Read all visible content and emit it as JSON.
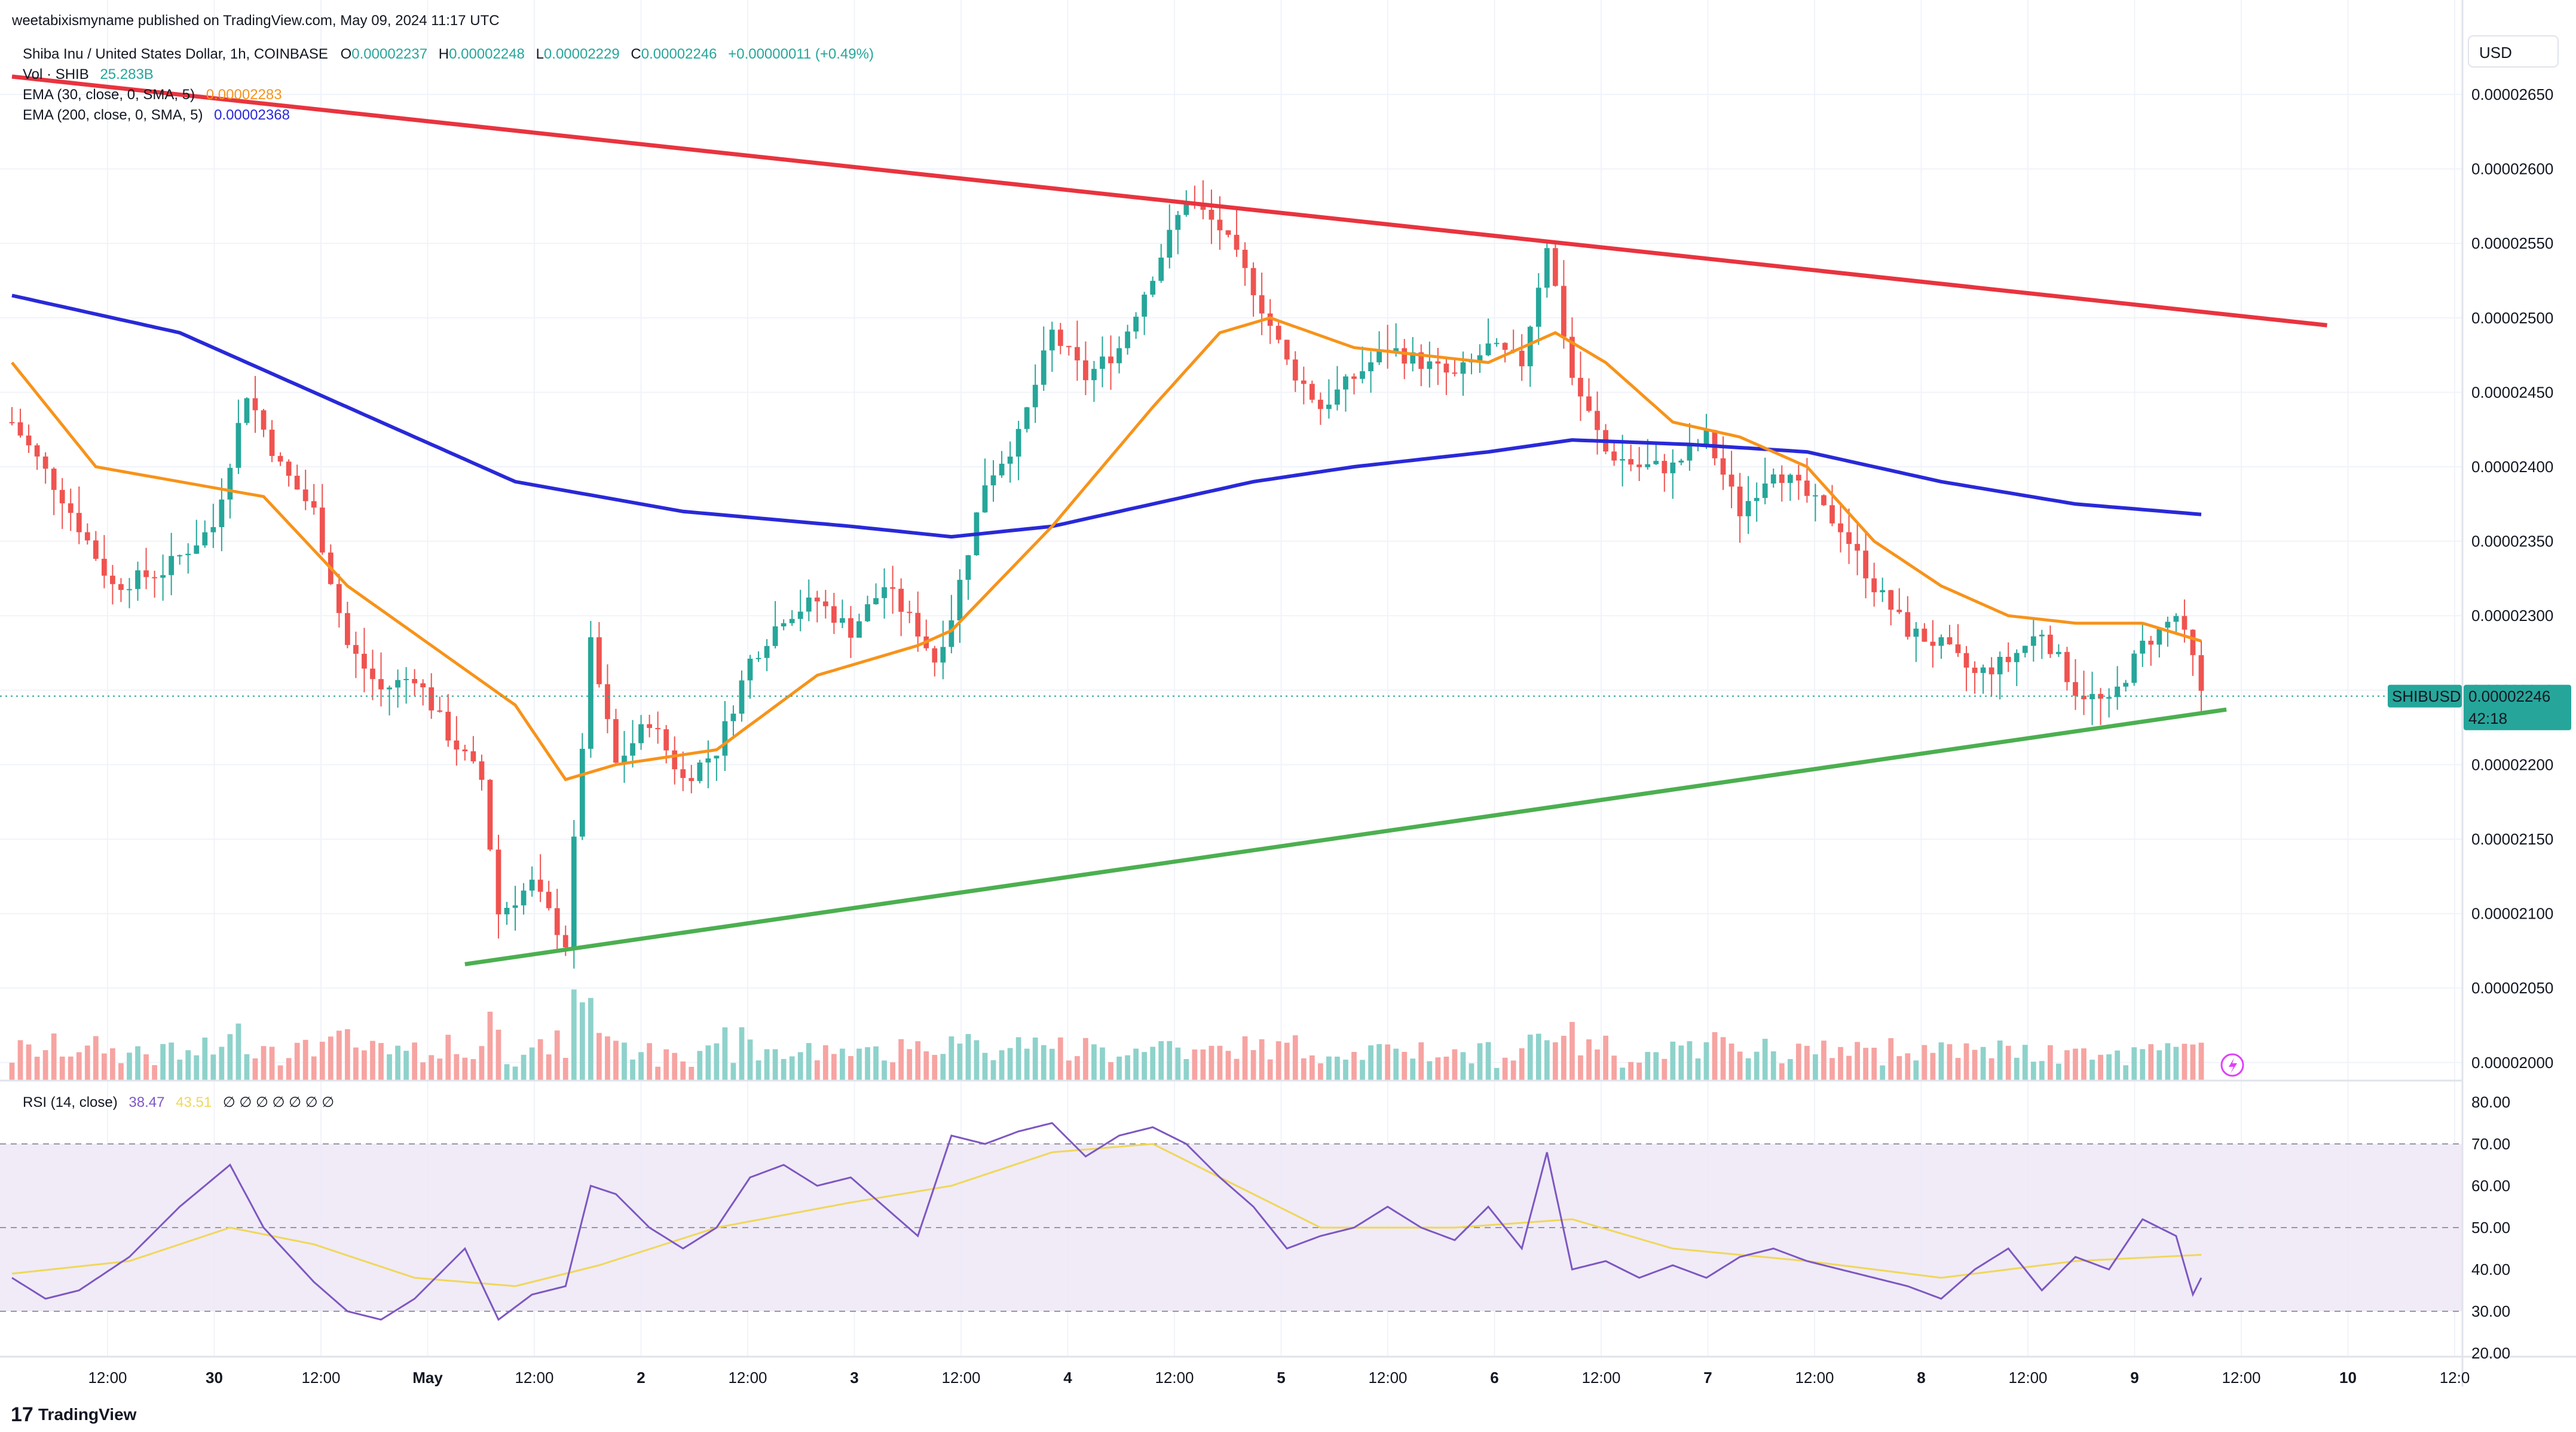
{
  "header": {
    "published": "weetabixismyname published on TradingView.com, May 09, 2024 11:17 UTC",
    "symbol": "Shiba Inu / United States Dollar, 1h, COINBASE",
    "ohlc": {
      "o_label": "O",
      "o_value": "0.00002237",
      "h_label": "H",
      "h_value": "0.00002248",
      "l_label": "L",
      "l_value": "0.00002229",
      "c_label": "C",
      "c_value": "0.00002246",
      "change": "+0.00000011 (+0.49%)"
    }
  },
  "indicators": {
    "vol_label": "Vol · SHIB",
    "vol_value": "25.283B",
    "ema30_label": "EMA (30, close, 0, SMA, 5)",
    "ema30_value": "0.00002283",
    "ema200_label": "EMA (200, close, 0, SMA, 5)",
    "ema200_value": "0.00002368",
    "rsi_label": "RSI (14, close)",
    "rsi_value": "38.47",
    "rsi_ma_value": "43.51",
    "rsi_extra": "∅ ∅ ∅ ∅ ∅ ∅ ∅"
  },
  "price_axis": {
    "currency": "USD",
    "ticks": [
      "0.00002650",
      "0.00002600",
      "0.00002550",
      "0.00002500",
      "0.00002450",
      "0.00002400",
      "0.00002350",
      "0.00002300",
      "0.00002250",
      "0.00002200",
      "0.00002150",
      "0.00002100",
      "0.00002050",
      "0.00002000"
    ],
    "last_symbol": "SHIBUSD",
    "last_price": "0.00002246",
    "countdown": "42:18"
  },
  "rsi_axis": {
    "ticks": [
      "80.00",
      "70.00",
      "60.00",
      "50.00",
      "40.00",
      "30.00",
      "20.00"
    ]
  },
  "time_axis": {
    "ticks": [
      "12:00",
      "30",
      "12:00",
      "May",
      "12:00",
      "2",
      "12:00",
      "3",
      "12:00",
      "4",
      "12:00",
      "5",
      "12:00",
      "6",
      "12:00",
      "7",
      "12:00",
      "8",
      "12:00",
      "9",
      "12:00",
      "10",
      "12:0"
    ]
  },
  "footer": {
    "brand": "TradingView"
  },
  "colors": {
    "up": "#26a69a",
    "down": "#ef5350",
    "up_vol": "#8ed2cb",
    "down_vol": "#f6a4a2",
    "ema30": "#f7931a",
    "ema200": "#2929d8",
    "resistance": "#e8343f",
    "support": "#4caf50",
    "rsi": "#7e57c2",
    "rsi_ma": "#f0d75a",
    "rsi_band": "#ede7f6"
  },
  "chart_data": {
    "type": "candlestick",
    "price_range": [
      1.99e-05,
      2.68e-05
    ],
    "rsi_range": [
      20,
      80
    ],
    "time_range_hours": [
      0,
      270
    ],
    "price_anchors": [
      [
        0,
        2.43
      ],
      [
        6,
        2.38
      ],
      [
        12,
        2.32
      ],
      [
        18,
        2.33
      ],
      [
        24,
        2.36
      ],
      [
        28,
        2.45
      ],
      [
        32,
        2.4
      ],
      [
        36,
        2.37
      ],
      [
        40,
        2.28
      ],
      [
        44,
        2.25
      ],
      [
        48,
        2.26
      ],
      [
        52,
        2.22
      ],
      [
        56,
        2.19
      ],
      [
        58,
        2.1
      ],
      [
        62,
        2.12
      ],
      [
        66,
        2.08
      ],
      [
        69,
        2.28
      ],
      [
        72,
        2.2
      ],
      [
        76,
        2.23
      ],
      [
        80,
        2.19
      ],
      [
        84,
        2.21
      ],
      [
        88,
        2.27
      ],
      [
        92,
        2.3
      ],
      [
        96,
        2.31
      ],
      [
        100,
        2.29
      ],
      [
        104,
        2.32
      ],
      [
        108,
        2.29
      ],
      [
        110,
        2.27
      ],
      [
        112,
        2.3
      ],
      [
        116,
        2.39
      ],
      [
        120,
        2.42
      ],
      [
        124,
        2.49
      ],
      [
        128,
        2.46
      ],
      [
        132,
        2.48
      ],
      [
        136,
        2.53
      ],
      [
        140,
        2.58
      ],
      [
        144,
        2.56
      ],
      [
        148,
        2.52
      ],
      [
        152,
        2.47
      ],
      [
        156,
        2.44
      ],
      [
        160,
        2.46
      ],
      [
        164,
        2.48
      ],
      [
        168,
        2.47
      ],
      [
        172,
        2.46
      ],
      [
        176,
        2.48
      ],
      [
        180,
        2.47
      ],
      [
        183,
        2.55
      ],
      [
        186,
        2.46
      ],
      [
        190,
        2.41
      ],
      [
        194,
        2.4
      ],
      [
        198,
        2.4
      ],
      [
        202,
        2.42
      ],
      [
        206,
        2.37
      ],
      [
        210,
        2.4
      ],
      [
        214,
        2.38
      ],
      [
        218,
        2.36
      ],
      [
        222,
        2.32
      ],
      [
        226,
        2.29
      ],
      [
        230,
        2.28
      ],
      [
        234,
        2.26
      ],
      [
        238,
        2.27
      ],
      [
        242,
        2.29
      ],
      [
        246,
        2.25
      ],
      [
        250,
        2.24
      ],
      [
        254,
        2.28
      ],
      [
        258,
        2.3
      ],
      [
        260,
        2.27
      ],
      [
        261,
        2.246
      ]
    ],
    "ema30_anchors": [
      [
        0,
        2.47
      ],
      [
        10,
        2.4
      ],
      [
        20,
        2.39
      ],
      [
        30,
        2.38
      ],
      [
        40,
        2.32
      ],
      [
        50,
        2.28
      ],
      [
        60,
        2.24
      ],
      [
        66,
        2.19
      ],
      [
        72,
        2.2
      ],
      [
        84,
        2.21
      ],
      [
        96,
        2.26
      ],
      [
        108,
        2.28
      ],
      [
        112,
        2.29
      ],
      [
        124,
        2.36
      ],
      [
        136,
        2.44
      ],
      [
        144,
        2.49
      ],
      [
        150,
        2.5
      ],
      [
        160,
        2.48
      ],
      [
        176,
        2.47
      ],
      [
        184,
        2.49
      ],
      [
        190,
        2.47
      ],
      [
        198,
        2.43
      ],
      [
        206,
        2.42
      ],
      [
        214,
        2.4
      ],
      [
        222,
        2.35
      ],
      [
        230,
        2.32
      ],
      [
        238,
        2.3
      ],
      [
        246,
        2.295
      ],
      [
        254,
        2.295
      ],
      [
        261,
        2.283
      ]
    ],
    "ema200_anchors": [
      [
        0,
        2.515
      ],
      [
        20,
        2.49
      ],
      [
        40,
        2.44
      ],
      [
        60,
        2.39
      ],
      [
        80,
        2.37
      ],
      [
        100,
        2.36
      ],
      [
        112,
        2.353
      ],
      [
        124,
        2.36
      ],
      [
        136,
        2.375
      ],
      [
        148,
        2.39
      ],
      [
        160,
        2.4
      ],
      [
        176,
        2.41
      ],
      [
        186,
        2.418
      ],
      [
        200,
        2.415
      ],
      [
        214,
        2.41
      ],
      [
        230,
        2.39
      ],
      [
        246,
        2.375
      ],
      [
        261,
        2.368
      ]
    ],
    "resistance_line": [
      [
        0,
        2.662
      ],
      [
        276,
        2.495
      ]
    ],
    "support_line": [
      [
        54,
        2.066
      ],
      [
        264,
        2.237
      ]
    ],
    "rsi_anchors": [
      [
        0,
        38
      ],
      [
        4,
        33
      ],
      [
        8,
        35
      ],
      [
        14,
        43
      ],
      [
        20,
        55
      ],
      [
        26,
        65
      ],
      [
        30,
        50
      ],
      [
        36,
        37
      ],
      [
        40,
        30
      ],
      [
        44,
        28
      ],
      [
        48,
        33
      ],
      [
        54,
        45
      ],
      [
        58,
        28
      ],
      [
        62,
        34
      ],
      [
        66,
        36
      ],
      [
        69,
        60
      ],
      [
        72,
        58
      ],
      [
        76,
        50
      ],
      [
        80,
        45
      ],
      [
        84,
        50
      ],
      [
        88,
        62
      ],
      [
        92,
        65
      ],
      [
        96,
        60
      ],
      [
        100,
        62
      ],
      [
        104,
        55
      ],
      [
        108,
        48
      ],
      [
        112,
        72
      ],
      [
        116,
        70
      ],
      [
        120,
        73
      ],
      [
        124,
        75
      ],
      [
        128,
        67
      ],
      [
        132,
        72
      ],
      [
        136,
        74
      ],
      [
        140,
        70
      ],
      [
        144,
        62
      ],
      [
        148,
        55
      ],
      [
        152,
        45
      ],
      [
        156,
        48
      ],
      [
        160,
        50
      ],
      [
        164,
        55
      ],
      [
        168,
        50
      ],
      [
        172,
        47
      ],
      [
        176,
        55
      ],
      [
        180,
        45
      ],
      [
        183,
        68
      ],
      [
        186,
        40
      ],
      [
        190,
        42
      ],
      [
        194,
        38
      ],
      [
        198,
        41
      ],
      [
        202,
        38
      ],
      [
        206,
        43
      ],
      [
        210,
        45
      ],
      [
        214,
        42
      ],
      [
        218,
        40
      ],
      [
        222,
        38
      ],
      [
        226,
        36
      ],
      [
        230,
        33
      ],
      [
        234,
        40
      ],
      [
        238,
        45
      ],
      [
        242,
        35
      ],
      [
        246,
        43
      ],
      [
        250,
        40
      ],
      [
        254,
        52
      ],
      [
        258,
        48
      ],
      [
        260,
        34
      ],
      [
        261,
        38
      ]
    ],
    "rsi_ma_anchors": [
      [
        0,
        39
      ],
      [
        14,
        42
      ],
      [
        26,
        50
      ],
      [
        36,
        46
      ],
      [
        48,
        38
      ],
      [
        60,
        36
      ],
      [
        70,
        41
      ],
      [
        84,
        50
      ],
      [
        100,
        56
      ],
      [
        112,
        60
      ],
      [
        124,
        68
      ],
      [
        136,
        70
      ],
      [
        146,
        60
      ],
      [
        156,
        50
      ],
      [
        172,
        50
      ],
      [
        186,
        52
      ],
      [
        198,
        45
      ],
      [
        214,
        42
      ],
      [
        230,
        38
      ],
      [
        246,
        42
      ],
      [
        261,
        43.5
      ]
    ]
  }
}
